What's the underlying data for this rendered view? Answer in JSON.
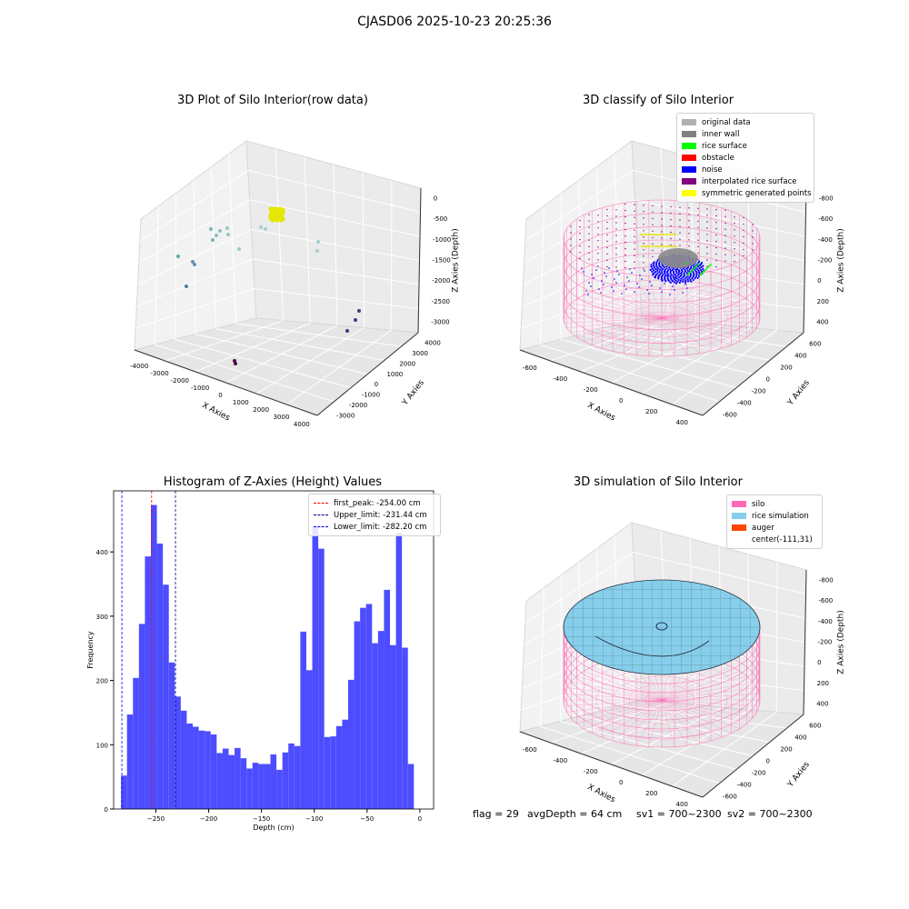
{
  "suptitle": "CJASD06 2025-10-23 20:25:36",
  "colors": {
    "hist_bar": "#4d4dff",
    "first_peak": "#ff0000",
    "limit": "#0000ff",
    "pane": "#f2f2f2",
    "silo": "#ff69b4",
    "rice": "#87ceeb",
    "auger": "#ff4500"
  },
  "panel1": {
    "title": "3D Plot of Silo Interior(row data)",
    "xlabel": "X Axies",
    "ylabel": "Y Axies",
    "zlabel": "Z Axies (Depth)",
    "xticks": [
      "-4000",
      "-3000",
      "-2000",
      "-1000",
      "0",
      "1000",
      "2000",
      "3000",
      "4000"
    ],
    "yticks": [
      "-3000",
      "-2000",
      "-1000",
      "0",
      "1000",
      "2000",
      "3000",
      "4000"
    ],
    "zticks": [
      "0",
      "-500",
      "-1000",
      "-1500",
      "-2000",
      "-2500",
      "-3000"
    ]
  },
  "panel2": {
    "title": "3D classify of Silo Interior",
    "xlabel": "X Axies",
    "ylabel": "Y Axies",
    "zlabel": "Z Axies (Depth)",
    "xticks": [
      "-600",
      "-400",
      "-200",
      "0",
      "200",
      "400"
    ],
    "yticks": [
      "-600",
      "-400",
      "-200",
      "0",
      "200",
      "400",
      "600"
    ],
    "zticks": [
      "-800",
      "-600",
      "-400",
      "-200",
      "0",
      "200",
      "400"
    ],
    "legend": [
      {
        "label": "original data",
        "color": "#b0b0b0"
      },
      {
        "label": "inner wall",
        "color": "#808080"
      },
      {
        "label": "rice surface",
        "color": "#00ff00"
      },
      {
        "label": "obstacle",
        "color": "#ff0000"
      },
      {
        "label": "noise",
        "color": "#0000ff"
      },
      {
        "label": "interpolated rice surface",
        "color": "#800080"
      },
      {
        "label": "symmetric generated points",
        "color": "#ffff00"
      }
    ]
  },
  "panel3": {
    "title": "Histogram of Z-Axies (Height) Values",
    "xlabel": "Depth (cm)",
    "ylabel": "Frequency",
    "legend": [
      {
        "label": "first_peak: -254.00 cm",
        "color": "#ff0000"
      },
      {
        "label": "Upper_limit: -231.44 cm",
        "color": "#00008b"
      },
      {
        "label": "Lower_limit: -282.20 cm",
        "color": "#0000ff"
      }
    ]
  },
  "panel4": {
    "title": "3D simulation of Silo Interior",
    "xlabel": "X Axies",
    "ylabel": "Y Axies",
    "zlabel": "Z Axies (Depth)",
    "xticks": [
      "-600",
      "-400",
      "-200",
      "0",
      "200",
      "400"
    ],
    "yticks": [
      "-600",
      "-400",
      "-200",
      "0",
      "200",
      "400",
      "600"
    ],
    "zticks": [
      "-800",
      "-600",
      "-400",
      "-200",
      "0",
      "200",
      "400"
    ],
    "legend": [
      {
        "label": "silo",
        "color": "#ff69b4"
      },
      {
        "label": "rice simulation",
        "color": "#87ceeb"
      },
      {
        "label": "auger",
        "color": "#ff4500"
      },
      {
        "label": "center(-111,31)",
        "color": ""
      }
    ]
  },
  "status": {
    "flag": "flag = 29",
    "avg_depth": "avgDepth = 64 cm",
    "sv1": "sv1 = 700~2300",
    "sv2": "sv2 = 700~2300"
  },
  "chart_data": {
    "type": "bar",
    "title": "Histogram of Z-Axies (Height) Values",
    "xlabel": "Depth (cm)",
    "ylabel": "Frequency",
    "xlim": [
      -290,
      13
    ],
    "ylim": [
      0,
      495
    ],
    "xticks": [
      -250,
      -200,
      -150,
      -100,
      -50,
      0
    ],
    "yticks": [
      0,
      100,
      200,
      300,
      400
    ],
    "bin_start": -283,
    "bin_width": 5.66,
    "values": [
      52,
      147,
      204,
      288,
      393,
      473,
      413,
      349,
      228,
      175,
      153,
      133,
      128,
      122,
      121,
      116,
      87,
      94,
      84,
      95,
      79,
      63,
      72,
      70,
      70,
      85,
      61,
      88,
      102,
      98,
      276,
      216,
      440,
      405,
      112,
      113,
      129,
      139,
      201,
      292,
      313,
      319,
      258,
      277,
      341,
      255,
      429,
      251,
      70
    ],
    "vlines": [
      {
        "name": "first_peak",
        "x": -254.0
      },
      {
        "name": "Upper_limit",
        "x": -231.44
      },
      {
        "name": "Lower_limit",
        "x": -282.2
      }
    ]
  }
}
